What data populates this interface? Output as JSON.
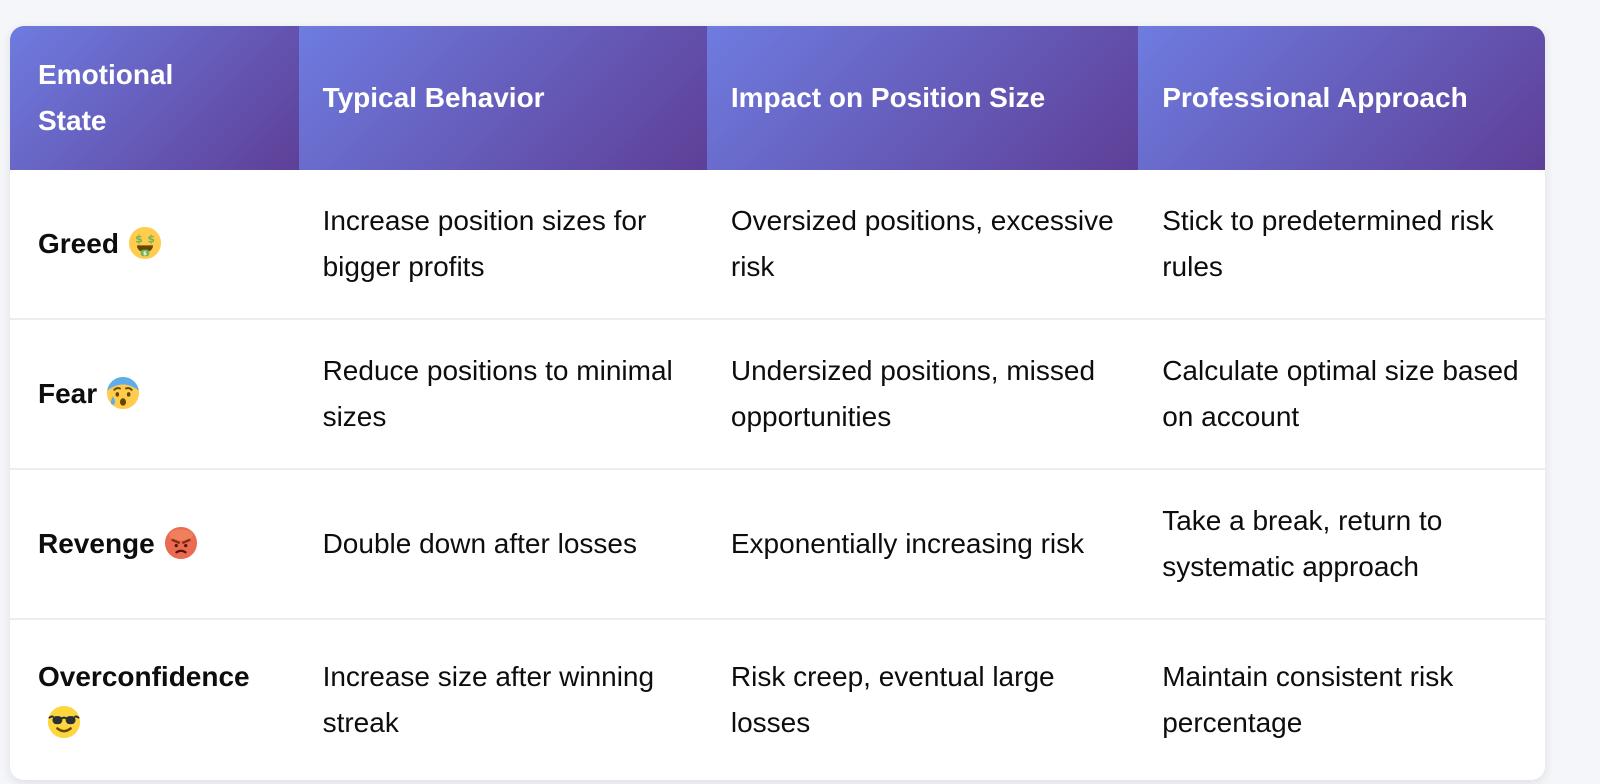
{
  "theme": {
    "page_background": "#f5f6f9",
    "header_gradient_start": "#6e7ce0",
    "header_gradient_end": "#5e3f97",
    "header_text_color": "#ffffff",
    "body_text_color": "#0d0d0d",
    "row_divider_color": "#ededf0",
    "card_background": "#ffffff"
  },
  "chart_data": {
    "type": "table",
    "columns": [
      "Emotional State",
      "Typical Behavior",
      "Impact on Position Size",
      "Professional Approach"
    ],
    "rows": [
      {
        "state": "Greed",
        "emoji": "money-mouth-face",
        "behavior": "Increase position sizes for bigger profits",
        "impact": "Oversized positions, excessive risk",
        "approach": "Stick to predetermined risk rules"
      },
      {
        "state": "Fear",
        "emoji": "anxious-face-with-sweat",
        "behavior": "Reduce positions to minimal sizes",
        "impact": "Undersized positions, missed opportunities",
        "approach": "Calculate optimal size based on account"
      },
      {
        "state": "Revenge",
        "emoji": "enraged-face",
        "behavior": "Double down after losses",
        "impact": "Exponentially increasing risk",
        "approach": "Take a break, return to systematic approach"
      },
      {
        "state": "Overconfidence",
        "emoji": "smiling-face-with-sunglasses",
        "behavior": "Increase size after winning streak",
        "impact": "Risk creep, eventual large losses",
        "approach": "Maintain consistent risk percentage"
      }
    ]
  }
}
